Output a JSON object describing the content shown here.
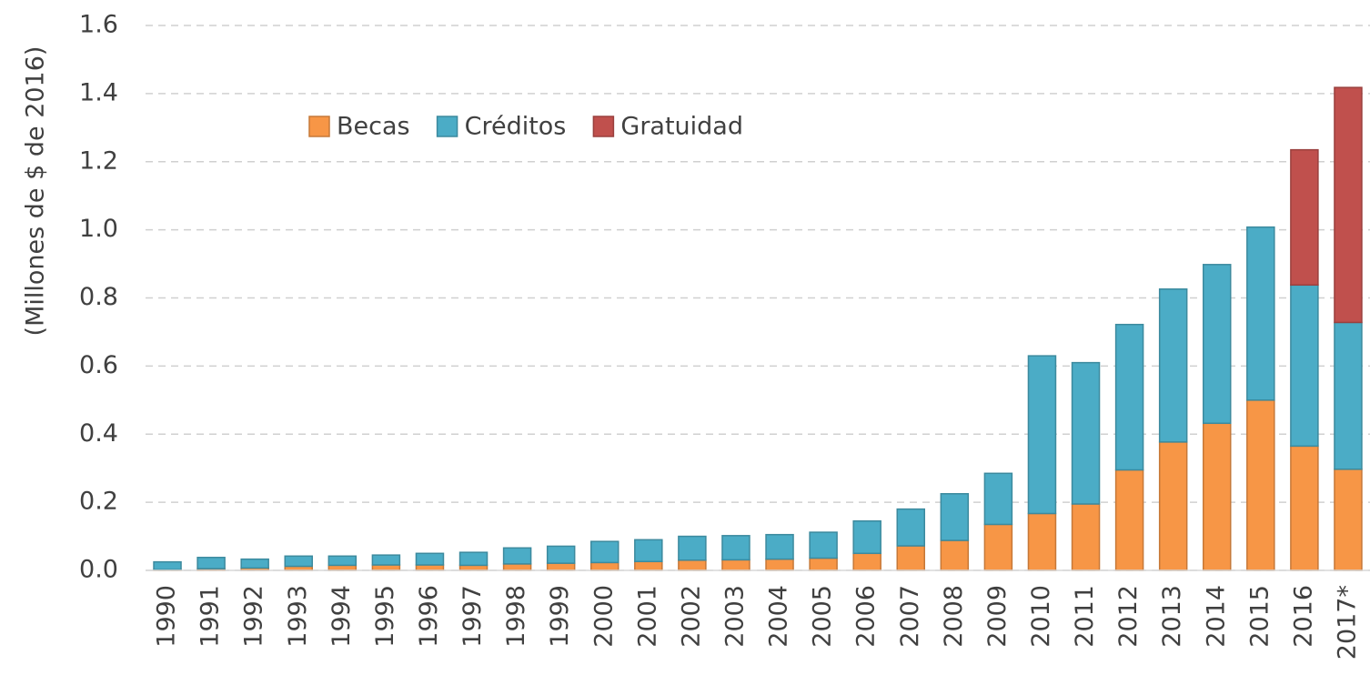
{
  "chart_data": {
    "type": "stacked-bar",
    "y_label": "(Millones de $ de 2016)",
    "categories": [
      "1990",
      "1991",
      "1992",
      "1993",
      "1994",
      "1995",
      "1996",
      "1997",
      "1998",
      "1999",
      "2000",
      "2001",
      "2002",
      "2003",
      "2004",
      "2005",
      "2006",
      "2007",
      "2008",
      "2009",
      "2010",
      "2011",
      "2012",
      "2013",
      "2014",
      "2015",
      "2016",
      "2017*"
    ],
    "series": [
      {
        "name": "Becas",
        "color": "#f79646",
        "values": [
          0.002,
          0.005,
          0.007,
          0.012,
          0.015,
          0.016,
          0.016,
          0.015,
          0.019,
          0.021,
          0.023,
          0.026,
          0.03,
          0.031,
          0.033,
          0.036,
          0.05,
          0.072,
          0.088,
          0.135,
          0.167,
          0.195,
          0.295,
          0.377,
          0.432,
          0.5,
          0.365,
          0.297
        ]
      },
      {
        "name": "Créditos",
        "color": "#4bacc6",
        "values": [
          0.023,
          0.033,
          0.026,
          0.03,
          0.027,
          0.029,
          0.034,
          0.038,
          0.047,
          0.05,
          0.062,
          0.064,
          0.07,
          0.071,
          0.072,
          0.076,
          0.095,
          0.108,
          0.137,
          0.15,
          0.463,
          0.415,
          0.427,
          0.449,
          0.466,
          0.508,
          0.473,
          0.431
        ]
      },
      {
        "name": "Gratuidad",
        "color": "#c0504d",
        "values": [
          null,
          null,
          null,
          null,
          null,
          null,
          null,
          null,
          null,
          null,
          null,
          null,
          null,
          null,
          null,
          null,
          null,
          null,
          null,
          null,
          null,
          null,
          null,
          null,
          null,
          null,
          0.397,
          0.69
        ]
      }
    ],
    "ylim": [
      0,
      1.6
    ],
    "yticks": [
      {
        "value": 0,
        "label": "0.0"
      },
      0.2,
      0.4,
      0.6,
      0.8,
      {
        "value": 1,
        "label": "1.0"
      },
      1.2,
      1.4,
      1.6
    ],
    "grid": true
  }
}
